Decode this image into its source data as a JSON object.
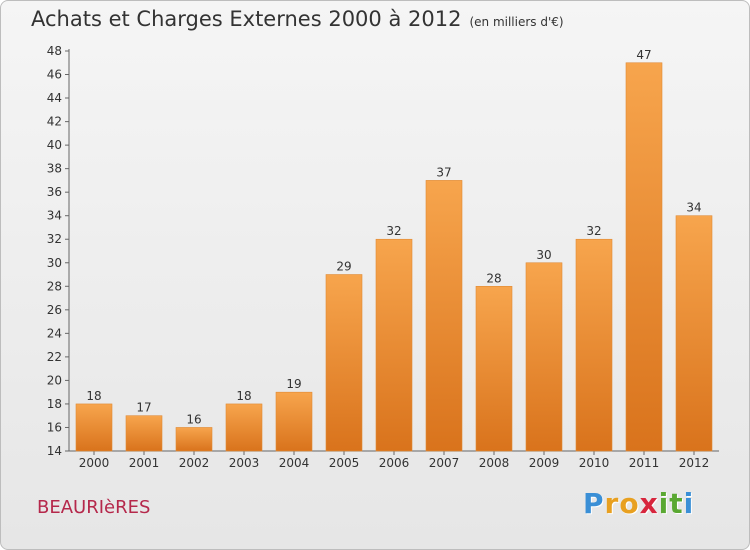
{
  "chart_data": {
    "type": "bar",
    "title": "Achats et Charges Externes 2000 à 2012",
    "subtitle": "(en milliers d'€)",
    "categories": [
      "2000",
      "2001",
      "2002",
      "2003",
      "2004",
      "2005",
      "2006",
      "2007",
      "2008",
      "2009",
      "2010",
      "2011",
      "2012"
    ],
    "values": [
      18,
      17,
      16,
      18,
      19,
      29,
      32,
      37,
      28,
      30,
      32,
      47,
      34
    ],
    "ylim": [
      14,
      48
    ],
    "yticks": [
      14,
      16,
      18,
      20,
      22,
      24,
      26,
      28,
      30,
      32,
      34,
      36,
      38,
      40,
      42,
      44,
      46,
      48
    ],
    "grid": false,
    "bar_color": "#f39a3e",
    "xlabel": "",
    "ylabel": ""
  },
  "commune": "BEAURIèRES",
  "brand": {
    "letters": [
      "P",
      "r",
      "o",
      "x",
      "i",
      "t",
      "i"
    ],
    "colors": [
      "#3a8fd6",
      "#e8a020",
      "#e8a020",
      "#d7263d",
      "#5aa832",
      "#5aa832",
      "#3a8fd6"
    ]
  }
}
